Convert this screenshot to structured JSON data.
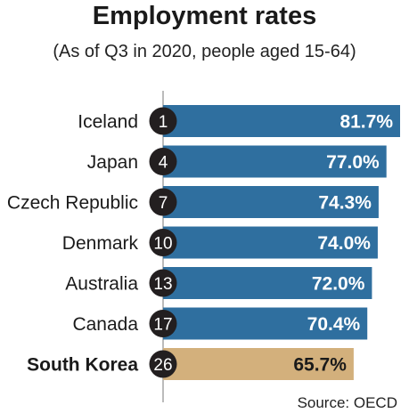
{
  "colors": {
    "bar": "#2f6f9f",
    "highlight_bar": "#d3b07c",
    "badge": "#231f20",
    "axis": "#777777",
    "value_text": "#ffffff",
    "highlight_value_text": "#1a1a1a"
  },
  "chart_data": {
    "type": "bar",
    "orientation": "horizontal",
    "title": "Employment rates",
    "subtitle": "(As of Q3 in 2020, people aged 15-64)",
    "source": "Source: OECD",
    "categories": [
      "Iceland",
      "Japan",
      "Czech Republic",
      "Denmark",
      "Australia",
      "Canada",
      "South Korea"
    ],
    "ranks": [
      "1",
      "4",
      "7",
      "10",
      "13",
      "17",
      "26"
    ],
    "values": [
      81.7,
      77.0,
      74.3,
      74.0,
      72.0,
      70.4,
      65.7
    ],
    "value_labels": [
      "81.7%",
      "77.0%",
      "74.3%",
      "74.0%",
      "72.0%",
      "70.4%",
      "65.7%"
    ],
    "highlight": "South Korea",
    "unit": "%"
  }
}
